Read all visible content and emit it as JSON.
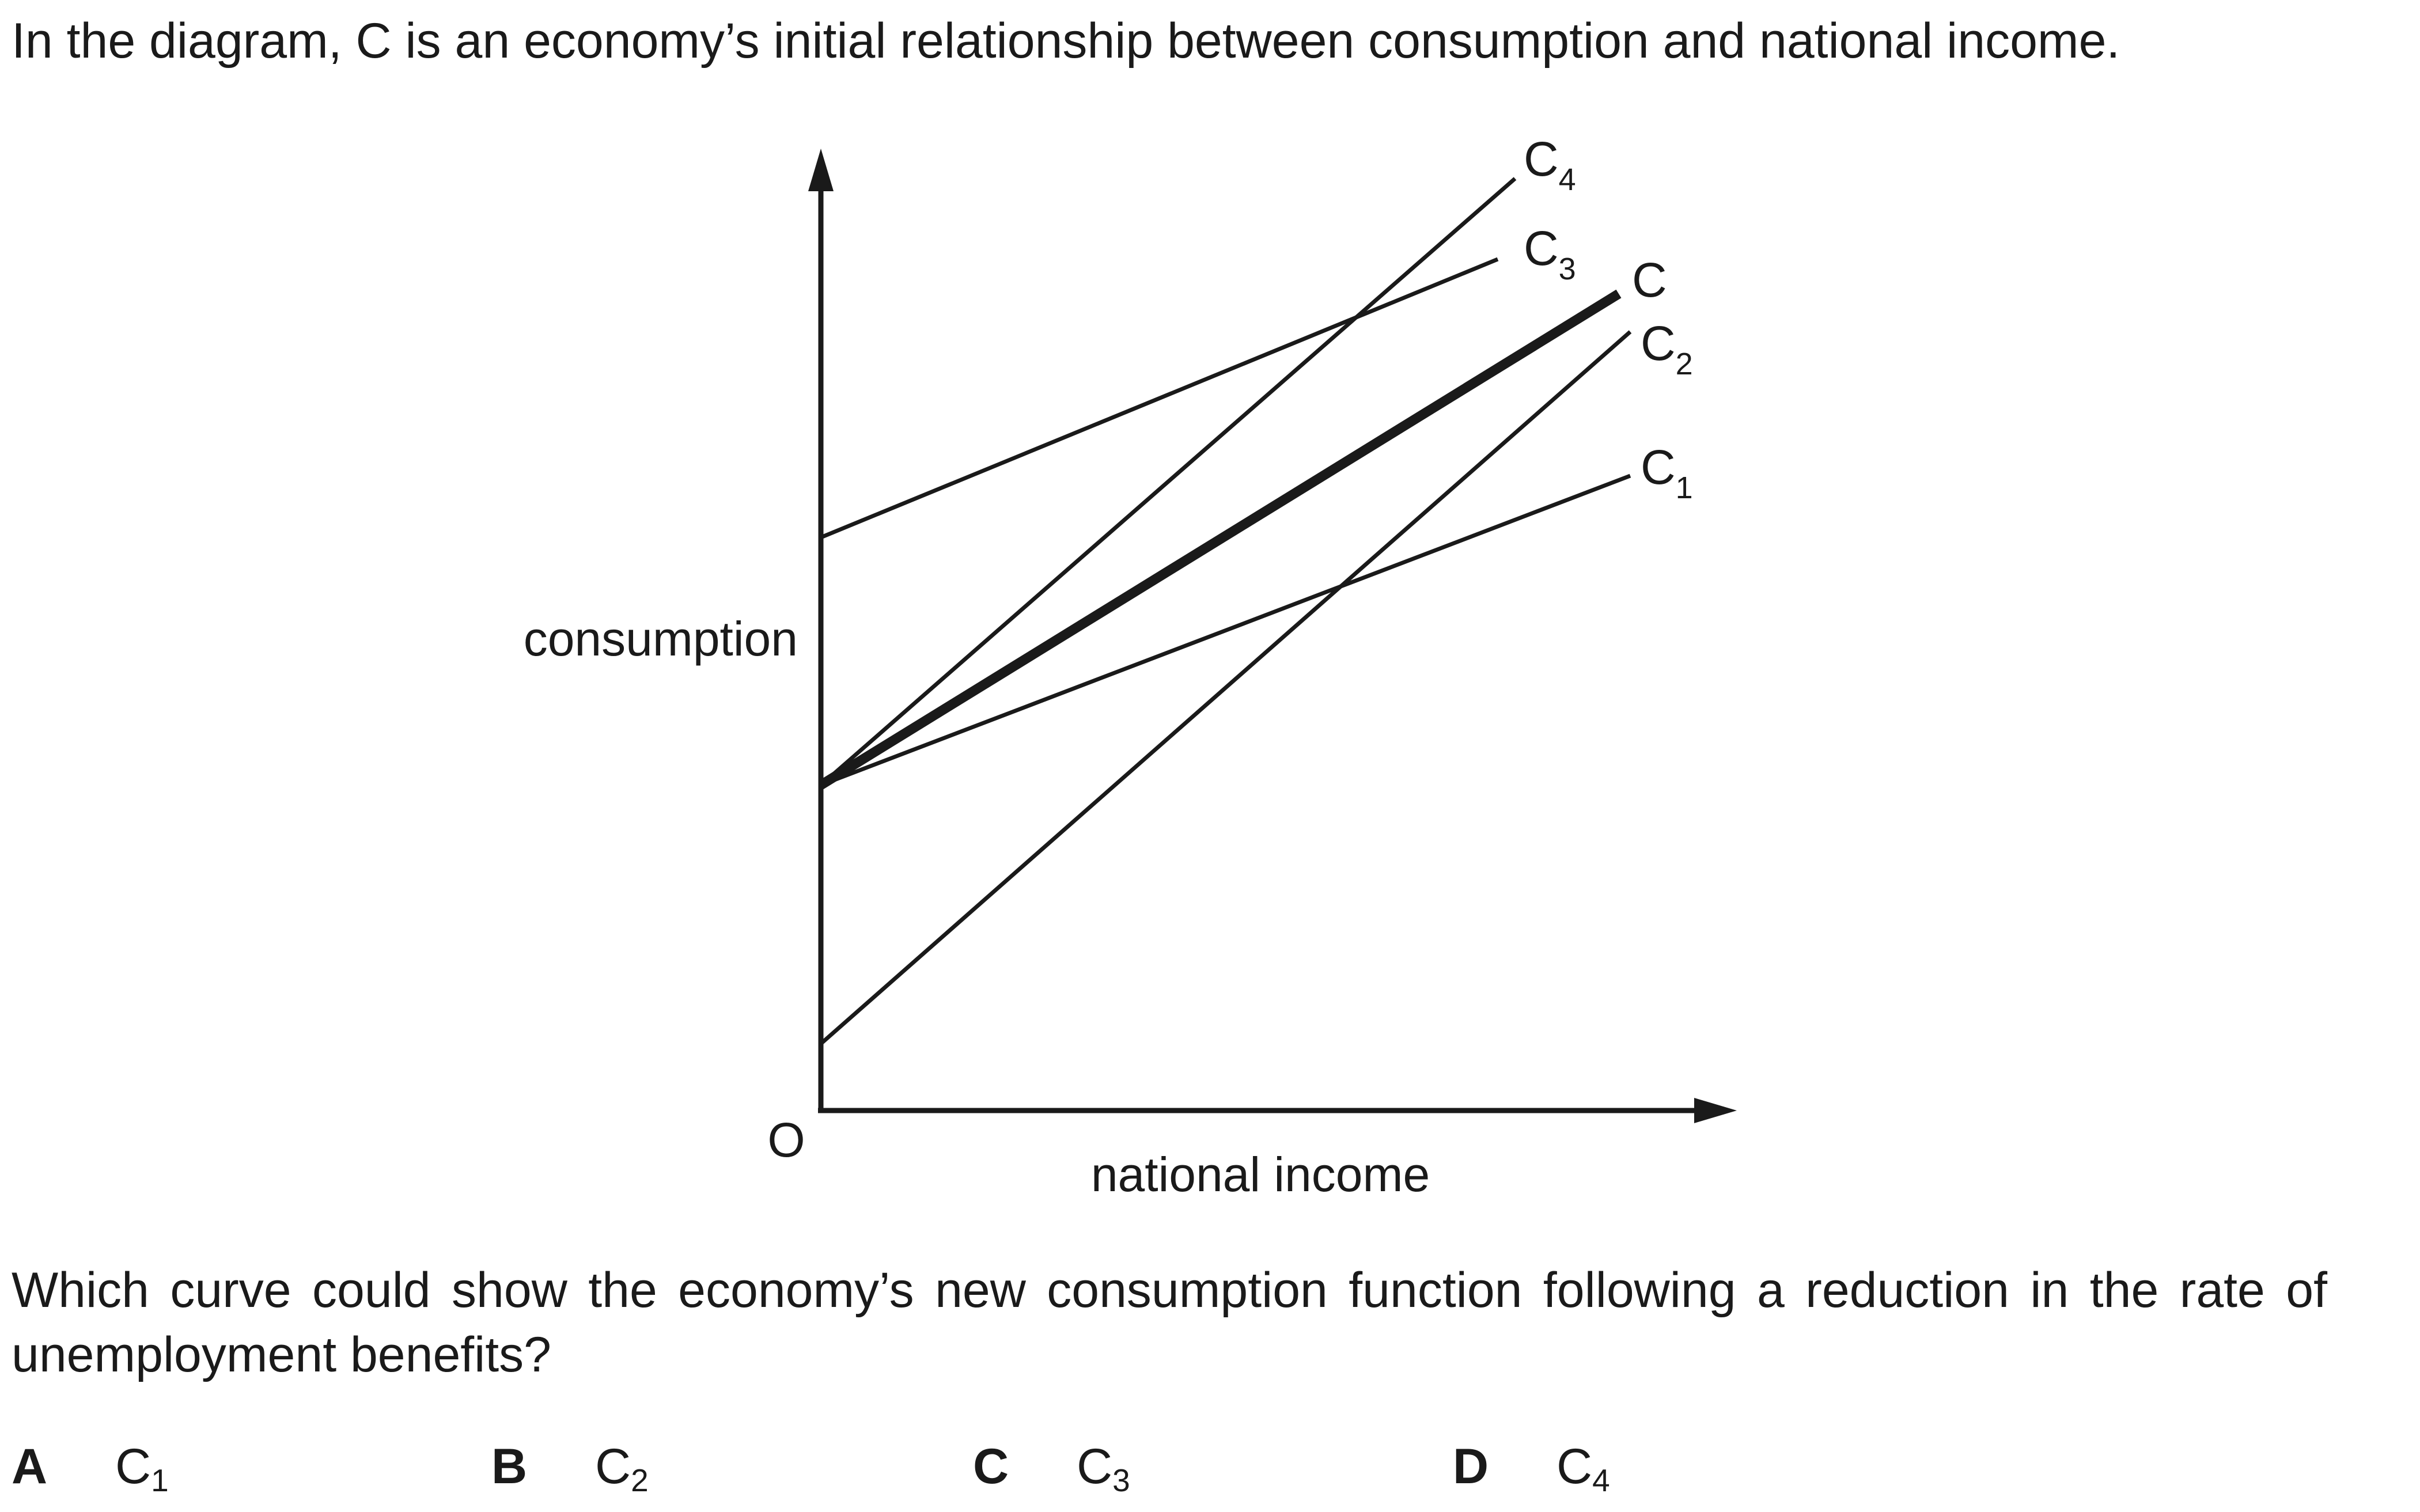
{
  "question": {
    "intro": "In the diagram, C is an economy’s initial relationship between consumption and national income.",
    "prompt": "Which curve could show the economy’s new consumption function following a reduction in the rate of unemployment benefits?"
  },
  "diagram": {
    "y_axis_label": "consumption",
    "x_axis_label": "national income",
    "origin_label": "O",
    "curves": [
      {
        "id": "C",
        "label_main": "C",
        "label_sub": "",
        "bold": true
      },
      {
        "id": "C1",
        "label_main": "C",
        "label_sub": "1",
        "bold": false
      },
      {
        "id": "C2",
        "label_main": "C",
        "label_sub": "2",
        "bold": false
      },
      {
        "id": "C3",
        "label_main": "C",
        "label_sub": "3",
        "bold": false
      },
      {
        "id": "C4",
        "label_main": "C",
        "label_sub": "4",
        "bold": false
      }
    ]
  },
  "options": [
    {
      "letter": "A",
      "curve_main": "C",
      "curve_sub": "1"
    },
    {
      "letter": "B",
      "curve_main": "C",
      "curve_sub": "2"
    },
    {
      "letter": "C",
      "curve_main": "C",
      "curve_sub": "3"
    },
    {
      "letter": "D",
      "curve_main": "C",
      "curve_sub": "4"
    }
  ]
}
